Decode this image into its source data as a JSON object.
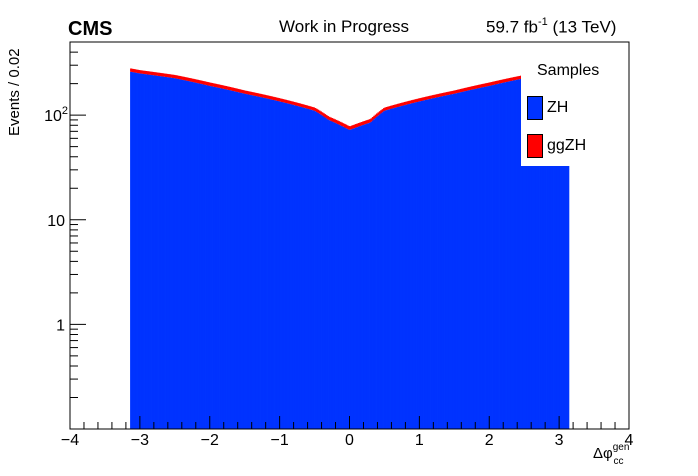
{
  "header": {
    "experiment": "CMS",
    "status": "Work in Progress",
    "lumi_value": "59.7 fb",
    "lumi_exp": "-1",
    "lumi_energy": " (13 TeV)"
  },
  "chart_data": {
    "type": "bar",
    "stacked": true,
    "ylabel": "Events / 0.02",
    "xlabel_main": "Δφ",
    "xlabel_sup": "gen",
    "xlabel_sub": "cc",
    "xlim": [
      -4,
      4
    ],
    "ylim": [
      0.1,
      500
    ],
    "yscale": "log",
    "x_ticks": [
      "−4",
      "−3",
      "−2",
      "−1",
      "0",
      "1",
      "2",
      "3",
      "4"
    ],
    "y_ticks": [
      {
        "value": 1,
        "label": "1",
        "exp": ""
      },
      {
        "value": 10,
        "label": "10",
        "exp": ""
      },
      {
        "value": 100,
        "label": "10",
        "exp": "2"
      }
    ],
    "x": [
      -3.14,
      -3.0,
      -2.5,
      -2.0,
      -1.5,
      -1.0,
      -0.5,
      -0.3,
      0.0,
      0.3,
      0.5,
      1.0,
      1.5,
      2.0,
      2.5,
      3.14
    ],
    "series": [
      {
        "name": "ZH",
        "color": "#0033ff",
        "values": [
          260,
          250,
          225,
          190,
          160,
          135,
          110,
          90,
          72,
          85,
          110,
          135,
          160,
          190,
          225,
          250
        ]
      },
      {
        "name": "ggZH",
        "color": "#ff0000",
        "values": [
          20,
          19,
          17,
          15,
          12,
          10,
          8,
          7,
          6,
          7,
          8,
          10,
          12,
          15,
          17,
          19
        ]
      }
    ],
    "legend": {
      "title": "Samples",
      "position": "top-right"
    }
  }
}
